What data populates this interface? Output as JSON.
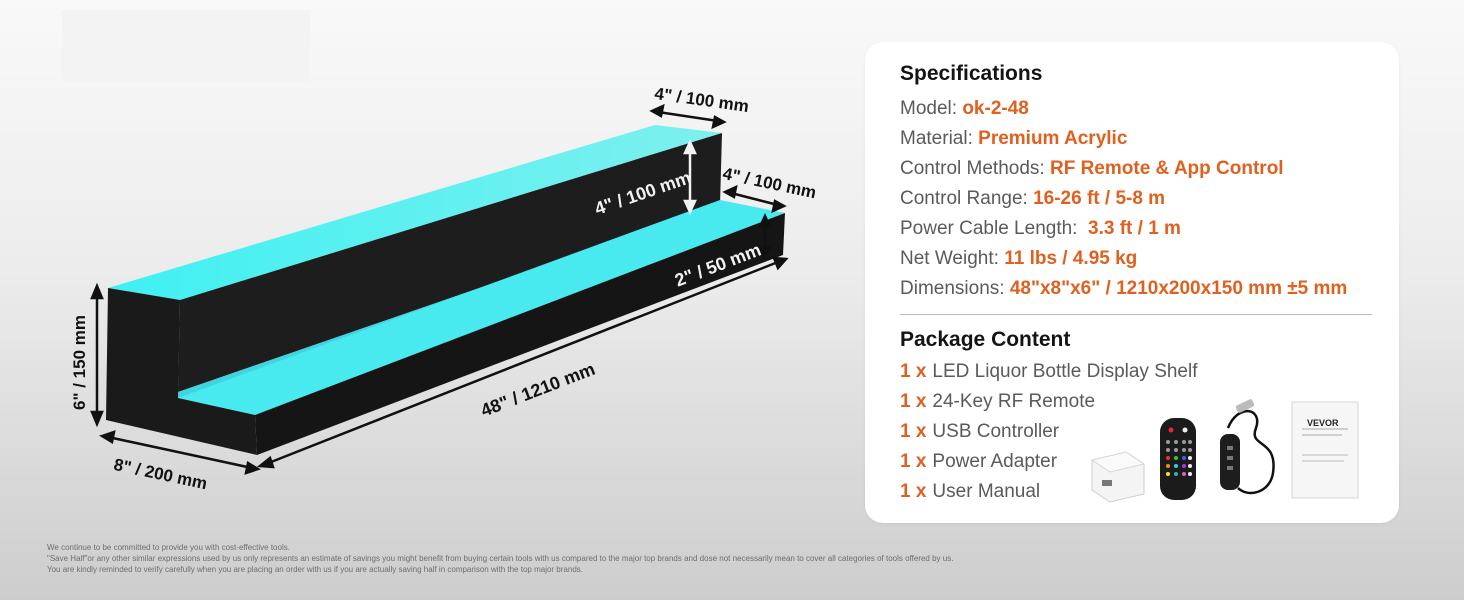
{
  "product_image": {
    "dimension_labels": {
      "top_depth": "4\" / 100 mm",
      "step_depth": "4\" / 100 mm",
      "back_height": "4\" / 100 mm",
      "front_height": "2\" / 50 mm",
      "total_height": "6\" / 150 mm",
      "total_depth": "8\" / 200 mm",
      "length": "48\" / 1210 mm"
    },
    "glow_color": "#3fe6ee"
  },
  "specifications": {
    "title": "Specifications",
    "items": [
      {
        "label": "Model: ",
        "value": "ok-2-48"
      },
      {
        "label": "Material: ",
        "value": "Premium Acrylic"
      },
      {
        "label": "Control Methods: ",
        "value": "RF Remote & App Control"
      },
      {
        "label": "Control Range: ",
        "value": "16-26 ft / 5-8 m"
      },
      {
        "label": "Power Cable Length: ",
        "value": " 3.3 ft / 1 m"
      },
      {
        "label": "Net Weight: ",
        "value": "11 lbs / 4.95 kg"
      },
      {
        "label": "Dimensions: ",
        "value": "48\"x8\"x6\" / 1210x200x150 mm ±5 mm"
      }
    ]
  },
  "package_content": {
    "title": "Package Content",
    "items": [
      {
        "qty": "1 x",
        "name": "LED Liquor Bottle Display Shelf"
      },
      {
        "qty": "1 x",
        "name": "24-Key RF Remote"
      },
      {
        "qty": "1 x",
        "name": "USB Controller"
      },
      {
        "qty": "1 x",
        "name": "Power Adapter"
      },
      {
        "qty": "1 x",
        "name": "User Manual"
      }
    ],
    "manual_brand": "VEVOR"
  },
  "disclaimer": [
    "We continue to be committed to provide you with cost-effective tools.",
    "\"Save Half\"or any other similar expressions used by us only represents an estimate of savings you might benefit from buying certain tools with us compared to the major top brands and dose not necessarily mean to cover all categories of tools offered by us.",
    "You are kindly reminded to verify carefully when you are placing an order with us if you are actually saving half in comparison with the top major brands."
  ],
  "accent_color": "#e0601f"
}
